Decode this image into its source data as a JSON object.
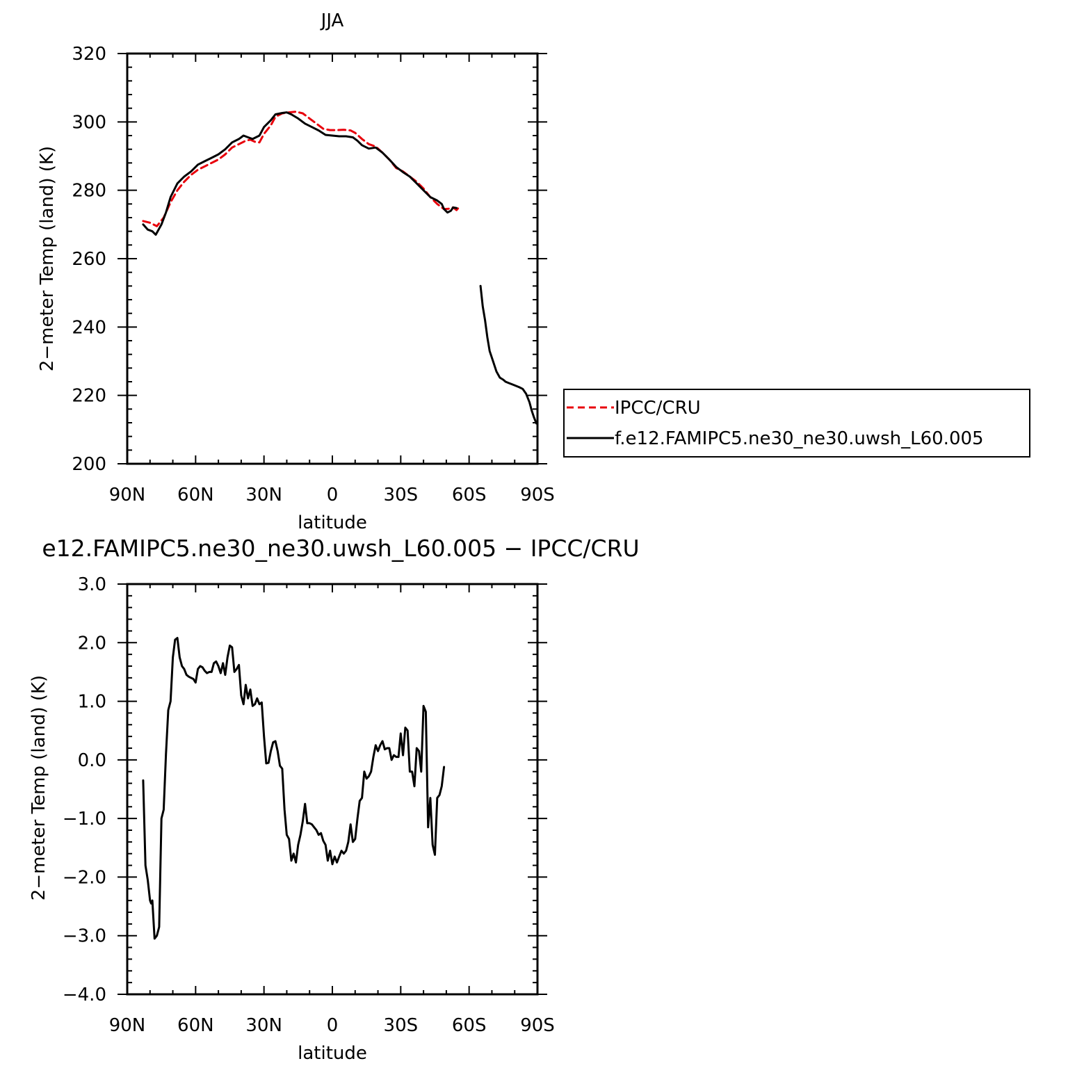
{
  "figure": {
    "top_title": "JJA",
    "bottom_title": "e12.FAMIPC5.ne30_ne30.uwsh_L60.005 − IPCC/CRU"
  },
  "colors": {
    "obs": "#e8000b",
    "model": "#000000",
    "axis": "#000000"
  },
  "chart_data": [
    {
      "type": "line",
      "title": "JJA",
      "xlabel": "latitude",
      "ylabel": "2−meter Temp (land) (K)",
      "xlim": [
        90,
        -90
      ],
      "ylim": [
        200,
        320
      ],
      "x_ticks": [
        90,
        60,
        30,
        0,
        -30,
        -60,
        -90
      ],
      "x_tick_labels": [
        "90N",
        "60N",
        "30N",
        "0",
        "30S",
        "60S",
        "90S"
      ],
      "y_ticks": [
        200,
        220,
        240,
        260,
        280,
        300,
        320
      ],
      "y_tick_labels": [
        "200",
        "220",
        "240",
        "260",
        "280",
        "300",
        "320"
      ],
      "legend_position": "right",
      "series": [
        {
          "name": "IPCC/CRU",
          "color": "#e8000b",
          "dash": "dashed",
          "points": [
            [
              83,
              271
            ],
            [
              80,
              270.5
            ],
            [
              77,
              269.5
            ],
            [
              74,
              272
            ],
            [
              71,
              276.5
            ],
            [
              68,
              280
            ],
            [
              65,
              282.5
            ],
            [
              62,
              284.5
            ],
            [
              59,
              286
            ],
            [
              56,
              287
            ],
            [
              53,
              288
            ],
            [
              50,
              289
            ],
            [
              47,
              290.5
            ],
            [
              44,
              292.5
            ],
            [
              41,
              293.5
            ],
            [
              38,
              294.5
            ],
            [
              36,
              294.8
            ],
            [
              34,
              294.2
            ],
            [
              32,
              294
            ],
            [
              30,
              296.5
            ],
            [
              27,
              299
            ],
            [
              25,
              301.5
            ],
            [
              22,
              302.5
            ],
            [
              19,
              302.8
            ],
            [
              16,
              303
            ],
            [
              13,
              302.5
            ],
            [
              10,
              301
            ],
            [
              7,
              299.5
            ],
            [
              4,
              298
            ],
            [
              1,
              297.6
            ],
            [
              -2,
              297.6
            ],
            [
              -5,
              297.7
            ],
            [
              -8,
              297.5
            ],
            [
              -10,
              296.8
            ],
            [
              -13,
              295
            ],
            [
              -16,
              293.5
            ],
            [
              -19,
              292.8
            ],
            [
              -22,
              291
            ],
            [
              -25,
              289
            ],
            [
              -28,
              286.5
            ],
            [
              -31,
              285.5
            ],
            [
              -34,
              284
            ],
            [
              -37,
              282.5
            ],
            [
              -40,
              280.5
            ],
            [
              -43,
              278
            ],
            [
              -46,
              276
            ],
            [
              -49,
              274.5
            ],
            [
              -51,
              274.6
            ],
            [
              -53,
              275
            ],
            [
              -54.5,
              274.2
            ],
            [
              -55.5,
              275
            ]
          ]
        },
        {
          "name": "f.e12.FAMIPC5.ne30_ne30.uwsh_L60.005",
          "color": "#000000",
          "dash": "solid",
          "points": [
            [
              83,
              270
            ],
            [
              81,
              268.5
            ],
            [
              79,
              268
            ],
            [
              77.5,
              267
            ],
            [
              75,
              270
            ],
            [
              73,
              273.5
            ],
            [
              71,
              278
            ],
            [
              68,
              282
            ],
            [
              65,
              284
            ],
            [
              62,
              285.5
            ],
            [
              59,
              287.5
            ],
            [
              56,
              288.5
            ],
            [
              53,
              289.5
            ],
            [
              50,
              290.5
            ],
            [
              47,
              292
            ],
            [
              44,
              294
            ],
            [
              41,
              295
            ],
            [
              39,
              296
            ],
            [
              37,
              295.5
            ],
            [
              35,
              295
            ],
            [
              32,
              296
            ],
            [
              30,
              298.5
            ],
            [
              27,
              300.5
            ],
            [
              25,
              302.2
            ],
            [
              22,
              302.6
            ],
            [
              20,
              302.8
            ],
            [
              18,
              302.2
            ],
            [
              15,
              301
            ],
            [
              12,
              299.5
            ],
            [
              9,
              298.5
            ],
            [
              6,
              297.5
            ],
            [
              3,
              296.2
            ],
            [
              0,
              296
            ],
            [
              -3,
              295.8
            ],
            [
              -6,
              295.8
            ],
            [
              -9,
              295.5
            ],
            [
              -11,
              294.5
            ],
            [
              -13,
              293.2
            ],
            [
              -16,
              292.2
            ],
            [
              -19,
              292.5
            ],
            [
              -22,
              291
            ],
            [
              -25,
              289
            ],
            [
              -28,
              286.8
            ],
            [
              -31,
              285.3
            ],
            [
              -34,
              284
            ],
            [
              -37,
              282
            ],
            [
              -40,
              280
            ],
            [
              -43,
              278
            ],
            [
              -46,
              277
            ],
            [
              -48,
              276
            ],
            [
              -49,
              274.5
            ],
            [
              -50.5,
              273.5
            ],
            [
              -52,
              274
            ],
            [
              -53,
              275
            ],
            [
              -54.5,
              274.8
            ]
          ]
        },
        {
          "name": "f.e12.FAMIPC5.ne30_ne30.uwsh_L60.005",
          "color": "#000000",
          "dash": "solid",
          "points": [
            [
              -65,
              252
            ],
            [
              -66,
              246
            ],
            [
              -67,
              242
            ],
            [
              -68,
              237
            ],
            [
              -69,
              233
            ],
            [
              -70.5,
              230
            ],
            [
              -72,
              227
            ],
            [
              -73.5,
              225.2
            ],
            [
              -75,
              224.6
            ],
            [
              -76,
              224
            ],
            [
              -77.5,
              223.6
            ],
            [
              -79,
              223.2
            ],
            [
              -80.5,
              222.8
            ],
            [
              -82,
              222.4
            ],
            [
              -83.5,
              221.9
            ],
            [
              -85,
              220.5
            ],
            [
              -86.5,
              218
            ],
            [
              -87.5,
              215.5
            ],
            [
              -88.5,
              213.5
            ],
            [
              -89.5,
              211.8
            ]
          ]
        }
      ]
    },
    {
      "type": "line",
      "title": "e12.FAMIPC5.ne30_ne30.uwsh_L60.005 − IPCC/CRU",
      "xlabel": "latitude",
      "ylabel": "2−meter Temp (land) (K)",
      "xlim": [
        90,
        -90
      ],
      "ylim": [
        -4.0,
        3.0
      ],
      "x_ticks": [
        90,
        60,
        30,
        0,
        -30,
        -60,
        -90
      ],
      "x_tick_labels": [
        "90N",
        "60N",
        "30N",
        "0",
        "30S",
        "60S",
        "90S"
      ],
      "y_ticks": [
        -4.0,
        -3.0,
        -2.0,
        -1.0,
        0.0,
        1.0,
        2.0,
        3.0
      ],
      "y_tick_labels": [
        "−4.0",
        "−3.0",
        "−2.0",
        "−1.0",
        "0.0",
        "1.0",
        "2.0",
        "3.0"
      ],
      "series": [
        {
          "color": "#000000",
          "dash": "solid",
          "points": [
            [
              83,
              -0.35
            ],
            [
              82,
              -1.8
            ],
            [
              81,
              -2.05
            ],
            [
              80,
              -2.4
            ],
            [
              79.5,
              -2.45
            ],
            [
              79,
              -2.4
            ],
            [
              78,
              -3.05
            ],
            [
              77,
              -3.0
            ],
            [
              76,
              -2.85
            ],
            [
              75,
              -1.0
            ],
            [
              74,
              -0.85
            ],
            [
              73,
              0.1
            ],
            [
              72,
              0.85
            ],
            [
              71,
              1.0
            ],
            [
              70,
              1.75
            ],
            [
              69,
              2.05
            ],
            [
              68,
              2.08
            ],
            [
              67,
              1.75
            ],
            [
              66,
              1.6
            ],
            [
              65,
              1.55
            ],
            [
              64,
              1.45
            ],
            [
              63,
              1.42
            ],
            [
              62,
              1.4
            ],
            [
              61,
              1.38
            ],
            [
              60,
              1.32
            ],
            [
              59,
              1.55
            ],
            [
              58,
              1.6
            ],
            [
              57,
              1.58
            ],
            [
              56,
              1.52
            ],
            [
              55,
              1.48
            ],
            [
              54,
              1.5
            ],
            [
              53,
              1.5
            ],
            [
              52,
              1.65
            ],
            [
              51,
              1.68
            ],
            [
              50,
              1.6
            ],
            [
              49,
              1.48
            ],
            [
              48,
              1.65
            ],
            [
              47,
              1.45
            ],
            [
              46,
              1.75
            ],
            [
              45,
              1.95
            ],
            [
              44,
              1.92
            ],
            [
              43,
              1.5
            ],
            [
              42,
              1.55
            ],
            [
              41,
              1.62
            ],
            [
              40,
              1.1
            ],
            [
              39,
              0.95
            ],
            [
              38,
              1.28
            ],
            [
              37,
              1.05
            ],
            [
              36,
              1.2
            ],
            [
              35,
              0.92
            ],
            [
              34,
              0.95
            ],
            [
              33,
              1.05
            ],
            [
              32,
              0.95
            ],
            [
              31,
              0.98
            ],
            [
              30,
              0.4
            ],
            [
              29,
              -0.06
            ],
            [
              28,
              -0.05
            ],
            [
              27,
              0.15
            ],
            [
              26,
              0.3
            ],
            [
              25,
              0.32
            ],
            [
              24,
              0.15
            ],
            [
              23,
              -0.1
            ],
            [
              22,
              -0.15
            ],
            [
              21,
              -0.85
            ],
            [
              20,
              -1.28
            ],
            [
              19,
              -1.35
            ],
            [
              18,
              -1.72
            ],
            [
              17,
              -1.6
            ],
            [
              16,
              -1.75
            ],
            [
              15,
              -1.45
            ],
            [
              14,
              -1.28
            ],
            [
              13,
              -1.05
            ],
            [
              12,
              -0.75
            ],
            [
              11,
              -1.08
            ],
            [
              10,
              -1.08
            ],
            [
              9,
              -1.1
            ],
            [
              8,
              -1.15
            ],
            [
              7,
              -1.2
            ],
            [
              6,
              -1.28
            ],
            [
              5,
              -1.25
            ],
            [
              4,
              -1.38
            ],
            [
              3,
              -1.45
            ],
            [
              2,
              -1.72
            ],
            [
              1,
              -1.55
            ],
            [
              0,
              -1.78
            ],
            [
              -1,
              -1.65
            ],
            [
              -2,
              -1.75
            ],
            [
              -3,
              -1.65
            ],
            [
              -4,
              -1.55
            ],
            [
              -5,
              -1.6
            ],
            [
              -6,
              -1.55
            ],
            [
              -7,
              -1.4
            ],
            [
              -8,
              -1.1
            ],
            [
              -9,
              -1.4
            ],
            [
              -10,
              -1.35
            ],
            [
              -11,
              -1.0
            ],
            [
              -12,
              -0.7
            ],
            [
              -13,
              -0.65
            ],
            [
              -14,
              -0.2
            ],
            [
              -15,
              -0.32
            ],
            [
              -16,
              -0.28
            ],
            [
              -17,
              -0.2
            ],
            [
              -18,
              0.05
            ],
            [
              -19,
              0.25
            ],
            [
              -20,
              0.15
            ],
            [
              -21,
              0.25
            ],
            [
              -22,
              0.32
            ],
            [
              -23,
              0.18
            ],
            [
              -24,
              0.2
            ],
            [
              -25,
              0.2
            ],
            [
              -26,
              0.0
            ],
            [
              -27,
              0.08
            ],
            [
              -28,
              0.05
            ],
            [
              -29,
              0.05
            ],
            [
              -30,
              0.45
            ],
            [
              -31,
              0.08
            ],
            [
              -32,
              0.55
            ],
            [
              -33,
              0.5
            ],
            [
              -34,
              -0.2
            ],
            [
              -35,
              -0.2
            ],
            [
              -36,
              -0.45
            ],
            [
              -37,
              0.2
            ],
            [
              -38,
              0.15
            ],
            [
              -39,
              -0.2
            ],
            [
              -40,
              0.92
            ],
            [
              -41,
              0.82
            ],
            [
              -42,
              -1.15
            ],
            [
              -43,
              -0.65
            ],
            [
              -44,
              -1.45
            ],
            [
              -45,
              -1.62
            ],
            [
              -46,
              -0.65
            ],
            [
              -47,
              -0.6
            ],
            [
              -48,
              -0.45
            ],
            [
              -49,
              -0.12
            ]
          ]
        }
      ]
    }
  ]
}
